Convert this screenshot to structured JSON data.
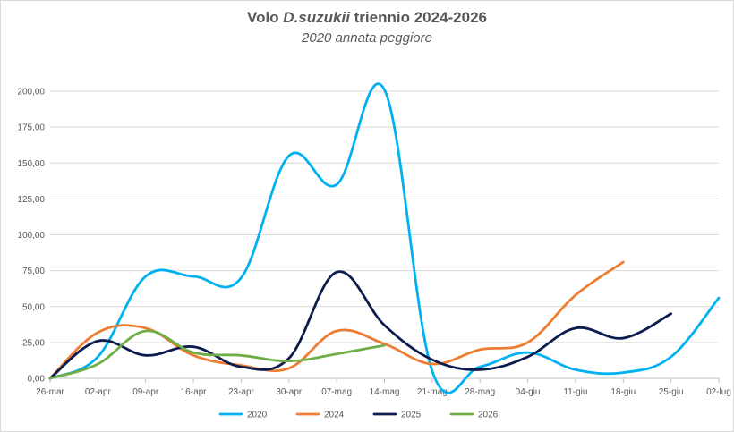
{
  "chart_data": {
    "type": "line",
    "title_prefix": "Volo ",
    "title_italic": "D.suzukii",
    "title_suffix": " triennio 2024-2026",
    "subtitle": "2020 annata peggiore",
    "xlabel": "",
    "ylabel": "",
    "categories": [
      "26-mar",
      "02-apr",
      "09-apr",
      "16-apr",
      "23-apr",
      "30-apr",
      "07-mag",
      "14-mag",
      "21-mag",
      "28-mag",
      "04-giu",
      "11-giu",
      "18-giu",
      "25-giu",
      "02-lug"
    ],
    "ylim": [
      0,
      200
    ],
    "yticks": [
      "0,00",
      "25,00",
      "50,00",
      "75,00",
      "100,00",
      "125,00",
      "150,00",
      "175,00",
      "200,00"
    ],
    "ytick_values": [
      0,
      25,
      50,
      75,
      100,
      125,
      150,
      175,
      200
    ],
    "grid": true,
    "legend_position": "bottom",
    "series": [
      {
        "name": "2020",
        "color": "#00b0f0",
        "values": [
          0,
          15,
          71,
          71,
          70,
          155,
          135,
          201,
          5,
          8,
          18,
          6,
          4,
          15,
          56
        ]
      },
      {
        "name": "2024",
        "color": "#ed7d31",
        "values": [
          0,
          32,
          35,
          16,
          9,
          7,
          33,
          24,
          10,
          20,
          25,
          58,
          81,
          null,
          null
        ]
      },
      {
        "name": "2025",
        "color": "#0d1c4e",
        "values": [
          0,
          26,
          16,
          22,
          8,
          14,
          74,
          37,
          13,
          6,
          15,
          35,
          28,
          45,
          null
        ]
      },
      {
        "name": "2026",
        "color": "#70ad47",
        "values": [
          0,
          10,
          33,
          18,
          16,
          12,
          17,
          23,
          null,
          null,
          null,
          null,
          null,
          null,
          null
        ]
      }
    ]
  }
}
